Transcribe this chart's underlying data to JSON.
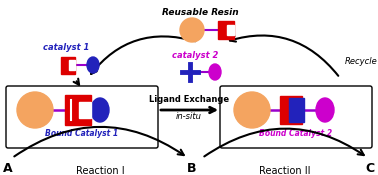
{
  "bg_color": "#ffffff",
  "sphere_color": "#F4A460",
  "line_color": "#9900CC",
  "red_color": "#DD0000",
  "blue_color": "#2222BB",
  "magenta_color": "#CC00CC",
  "label_resin": "Reusable Resin",
  "label_recycle": "Recycle",
  "label_cat1": "catalyst 1",
  "label_cat2": "catalyst 2",
  "label_ligex": "Ligand Exchange",
  "label_insitu": "in-situ",
  "label_bc1": "Bound Catalyst 1",
  "label_bc2": "Bound Catalyst 2",
  "label_A": "A",
  "label_B": "B",
  "label_C": "C",
  "label_rxn1": "Reaction I",
  "label_rxn2": "Reaction II"
}
